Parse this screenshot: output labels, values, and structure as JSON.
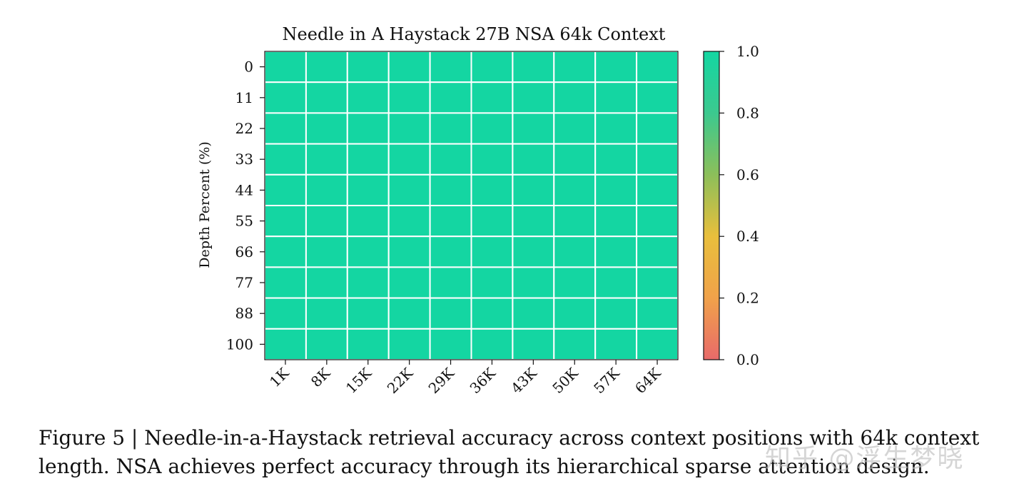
{
  "chart_data": {
    "type": "heatmap",
    "title": "Needle in A Haystack 27B NSA 64k Context",
    "xlabel": "",
    "ylabel": "Depth Percent (%)",
    "x_categories": [
      "1K",
      "8K",
      "15K",
      "22K",
      "29K",
      "36K",
      "43K",
      "50K",
      "57K",
      "64K"
    ],
    "y_categories": [
      "0",
      "11",
      "22",
      "33",
      "44",
      "55",
      "66",
      "77",
      "88",
      "100"
    ],
    "values": [
      [
        1,
        1,
        1,
        1,
        1,
        1,
        1,
        1,
        1,
        1
      ],
      [
        1,
        1,
        1,
        1,
        1,
        1,
        1,
        1,
        1,
        1
      ],
      [
        1,
        1,
        1,
        1,
        1,
        1,
        1,
        1,
        1,
        1
      ],
      [
        1,
        1,
        1,
        1,
        1,
        1,
        1,
        1,
        1,
        1
      ],
      [
        1,
        1,
        1,
        1,
        1,
        1,
        1,
        1,
        1,
        1
      ],
      [
        1,
        1,
        1,
        1,
        1,
        1,
        1,
        1,
        1,
        1
      ],
      [
        1,
        1,
        1,
        1,
        1,
        1,
        1,
        1,
        1,
        1
      ],
      [
        1,
        1,
        1,
        1,
        1,
        1,
        1,
        1,
        1,
        1
      ],
      [
        1,
        1,
        1,
        1,
        1,
        1,
        1,
        1,
        1,
        1
      ],
      [
        1,
        1,
        1,
        1,
        1,
        1,
        1,
        1,
        1,
        1
      ]
    ],
    "colorbar": {
      "range": [
        0.0,
        1.0
      ],
      "ticks": [
        "0.0",
        "0.2",
        "0.4",
        "0.6",
        "0.8",
        "1.0"
      ],
      "colors": [
        "#e86a6a",
        "#f0a24a",
        "#e9bf3c",
        "#8cbf5a",
        "#3cc98f",
        "#14d6a2"
      ]
    },
    "grid": true
  },
  "caption": "Figure 5 | Needle-in-a-Haystack retrieval accuracy across context positions with 64k context length. NSA achieves perfect accuracy through its hierarchical sparse attention design.",
  "watermark": "知乎 @浮生梦晓"
}
